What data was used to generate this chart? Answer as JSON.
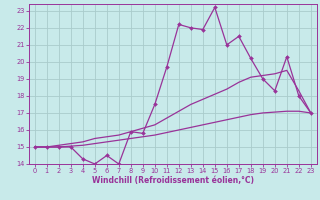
{
  "xlabel": "Windchill (Refroidissement éolien,°C)",
  "xlim": [
    -0.5,
    23.5
  ],
  "ylim": [
    14,
    23.4
  ],
  "yticks": [
    14,
    15,
    16,
    17,
    18,
    19,
    20,
    21,
    22,
    23
  ],
  "xticks": [
    0,
    1,
    2,
    3,
    4,
    5,
    6,
    7,
    8,
    9,
    10,
    11,
    12,
    13,
    14,
    15,
    16,
    17,
    18,
    19,
    20,
    21,
    22,
    23
  ],
  "bg_color": "#c8eaea",
  "grid_color": "#aacccc",
  "line_color": "#993399",
  "series1_x": [
    0,
    1,
    2,
    3,
    4,
    5,
    6,
    7,
    8,
    9,
    10,
    11,
    12,
    13,
    14,
    15,
    16,
    17,
    18,
    19,
    20,
    21,
    22,
    23
  ],
  "series1_y": [
    15.0,
    15.0,
    15.0,
    15.0,
    14.3,
    14.0,
    14.5,
    14.0,
    15.9,
    15.8,
    17.5,
    19.7,
    22.2,
    22.0,
    21.9,
    23.2,
    21.0,
    21.5,
    20.2,
    19.0,
    18.3,
    20.3,
    18.0,
    17.0
  ],
  "series2_x": [
    0,
    1,
    2,
    3,
    4,
    5,
    6,
    7,
    8,
    9,
    10,
    11,
    12,
    13,
    14,
    15,
    16,
    17,
    18,
    19,
    20,
    21,
    22,
    23
  ],
  "series2_y": [
    15.0,
    15.0,
    15.1,
    15.2,
    15.3,
    15.5,
    15.6,
    15.7,
    15.9,
    16.1,
    16.3,
    16.7,
    17.1,
    17.5,
    17.8,
    18.1,
    18.4,
    18.8,
    19.1,
    19.2,
    19.3,
    19.5,
    18.3,
    17.0
  ],
  "series3_x": [
    0,
    1,
    2,
    3,
    4,
    5,
    6,
    7,
    8,
    9,
    10,
    11,
    12,
    13,
    14,
    15,
    16,
    17,
    18,
    19,
    20,
    21,
    22,
    23
  ],
  "series3_y": [
    15.0,
    15.0,
    15.0,
    15.05,
    15.1,
    15.2,
    15.3,
    15.4,
    15.5,
    15.6,
    15.7,
    15.85,
    16.0,
    16.15,
    16.3,
    16.45,
    16.6,
    16.75,
    16.9,
    17.0,
    17.05,
    17.1,
    17.1,
    17.0
  ]
}
